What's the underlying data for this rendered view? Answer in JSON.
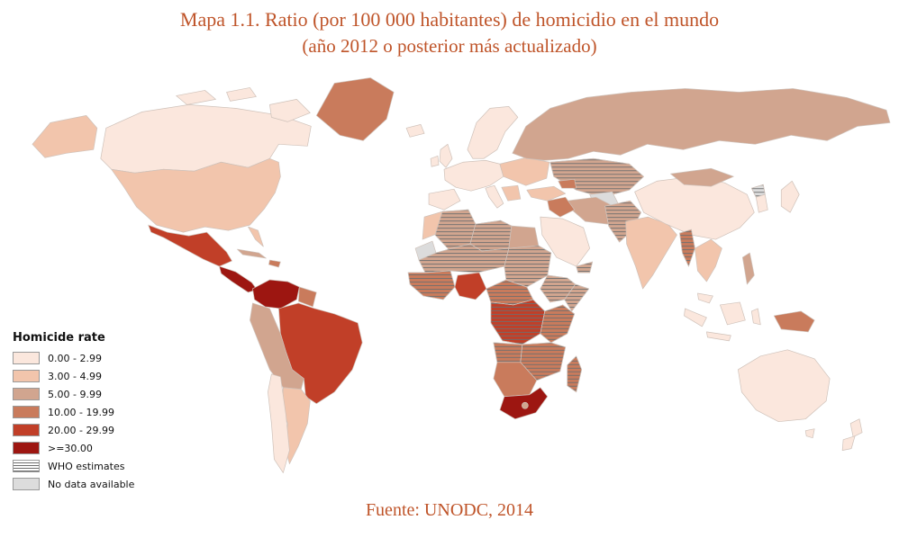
{
  "title": {
    "line1": "Mapa 1.1. Ratio (por 100 000 habitantes) de homicidio en el mundo",
    "line2": "(año 2012 o posterior más actualizado)"
  },
  "source": {
    "text": "Fuente: UNODC, 2014"
  },
  "legend": {
    "title": "Homicide rate",
    "items": [
      {
        "label": "0.00 - 2.99",
        "type": "solid",
        "category": "c1"
      },
      {
        "label": "3.00 - 4.99",
        "type": "solid",
        "category": "c2"
      },
      {
        "label": "5.00 - 9.99",
        "type": "solid",
        "category": "c3"
      },
      {
        "label": "10.00 - 19.99",
        "type": "solid",
        "category": "c4"
      },
      {
        "label": "20.00 - 29.99",
        "type": "solid",
        "category": "c5"
      },
      {
        "label": ">=30.00",
        "type": "solid",
        "category": "c6"
      },
      {
        "label": "WHO estimates",
        "type": "hatch"
      },
      {
        "label": "No data available",
        "type": "solid",
        "category": "nodata"
      }
    ]
  },
  "colors": {
    "c1": "#fbe7dd",
    "c2": "#f2c5ac",
    "c3": "#d1a58f",
    "c4": "#c97b5c",
    "c5": "#c13f28",
    "c6": "#9d1611",
    "nodata": "#dcdcdc",
    "hatch_line": "#6e6e6e",
    "country_border": "#cfc2ba",
    "title_color": "#bf5429",
    "ocean": "#ffffff"
  },
  "map_data": {
    "type": "choropleth",
    "metric": "homicide rate per 100 000 inhabitants (2012 or latest)",
    "regions": [
      {
        "id": "greenland",
        "category": "c4",
        "who": false
      },
      {
        "id": "canada",
        "category": "c1",
        "who": false
      },
      {
        "id": "arctic-islands-1",
        "category": "c1",
        "who": false
      },
      {
        "id": "arctic-islands-2",
        "category": "c1",
        "who": false
      },
      {
        "id": "baffin",
        "category": "c1",
        "who": false
      },
      {
        "id": "alaska",
        "category": "c2",
        "who": false
      },
      {
        "id": "usa",
        "category": "c2",
        "who": false
      },
      {
        "id": "florida",
        "category": "c2",
        "who": false
      },
      {
        "id": "mexico",
        "category": "c5",
        "who": false
      },
      {
        "id": "central-america",
        "category": "c6",
        "who": false
      },
      {
        "id": "cuba",
        "category": "c3",
        "who": false
      },
      {
        "id": "hispaniola",
        "category": "c4",
        "who": false
      },
      {
        "id": "colombia-venezuela",
        "category": "c6",
        "who": false
      },
      {
        "id": "guyanas",
        "category": "c4",
        "who": false
      },
      {
        "id": "brazil",
        "category": "c5",
        "who": false
      },
      {
        "id": "andes",
        "category": "c3",
        "who": false
      },
      {
        "id": "chile",
        "category": "c1",
        "who": false
      },
      {
        "id": "argentina",
        "category": "c2",
        "who": false
      },
      {
        "id": "iceland",
        "category": "c1",
        "who": false
      },
      {
        "id": "ireland",
        "category": "c1",
        "who": false
      },
      {
        "id": "uk",
        "category": "c1",
        "who": false
      },
      {
        "id": "scandinavia",
        "category": "c1",
        "who": false
      },
      {
        "id": "west-europe",
        "category": "c1",
        "who": false
      },
      {
        "id": "iberia",
        "category": "c1",
        "who": false
      },
      {
        "id": "italy",
        "category": "c1",
        "who": false
      },
      {
        "id": "east-europe",
        "category": "c2",
        "who": false
      },
      {
        "id": "balkans",
        "category": "c2",
        "who": false
      },
      {
        "id": "russia",
        "category": "c3",
        "who": false
      },
      {
        "id": "kazakhstan",
        "category": "c3",
        "who": true
      },
      {
        "id": "turkmenistan",
        "category": "nodata",
        "who": false
      },
      {
        "id": "turkey",
        "category": "c2",
        "who": false
      },
      {
        "id": "caucasus",
        "category": "c4",
        "who": false
      },
      {
        "id": "iran",
        "category": "c3",
        "who": false
      },
      {
        "id": "iraq-syria",
        "category": "c4",
        "who": false
      },
      {
        "id": "saudi-arabia",
        "category": "c1",
        "who": false
      },
      {
        "id": "yemen",
        "category": "c3",
        "who": true
      },
      {
        "id": "afghanistan-pakistan",
        "category": "c3",
        "who": true
      },
      {
        "id": "india",
        "category": "c2",
        "who": false
      },
      {
        "id": "china",
        "category": "c1",
        "who": false
      },
      {
        "id": "mongolia",
        "category": "c3",
        "who": false
      },
      {
        "id": "north-korea",
        "category": "nodata",
        "who": true
      },
      {
        "id": "south-korea",
        "category": "c1",
        "who": false
      },
      {
        "id": "japan",
        "category": "c1",
        "who": false
      },
      {
        "id": "myanmar",
        "category": "c4",
        "who": true
      },
      {
        "id": "indochina",
        "category": "c2",
        "who": false
      },
      {
        "id": "malaysia",
        "category": "c1",
        "who": false
      },
      {
        "id": "sumatra",
        "category": "c1",
        "who": false
      },
      {
        "id": "java",
        "category": "c1",
        "who": false
      },
      {
        "id": "borneo",
        "category": "c1",
        "who": false
      },
      {
        "id": "sulawesi",
        "category": "c1",
        "who": false
      },
      {
        "id": "philippines",
        "category": "c3",
        "who": false
      },
      {
        "id": "new-guinea",
        "category": "c4",
        "who": false
      },
      {
        "id": "australia",
        "category": "c1",
        "who": false
      },
      {
        "id": "tasmania",
        "category": "c1",
        "who": false
      },
      {
        "id": "nz-north",
        "category": "c1",
        "who": false
      },
      {
        "id": "nz-south",
        "category": "c1",
        "who": false
      },
      {
        "id": "morocco",
        "category": "c2",
        "who": false
      },
      {
        "id": "western-sahara",
        "category": "nodata",
        "who": false
      },
      {
        "id": "algeria",
        "category": "c3",
        "who": true
      },
      {
        "id": "libya",
        "category": "c3",
        "who": true
      },
      {
        "id": "egypt",
        "category": "c3",
        "who": false
      },
      {
        "id": "sahel",
        "category": "c3",
        "who": true
      },
      {
        "id": "chad-sudan",
        "category": "c3",
        "who": true
      },
      {
        "id": "west-africa",
        "category": "c4",
        "who": true
      },
      {
        "id": "nigeria",
        "category": "c5",
        "who": false
      },
      {
        "id": "ethiopia",
        "category": "c3",
        "who": true
      },
      {
        "id": "somalia",
        "category": "c3",
        "who": true
      },
      {
        "id": "central-africa",
        "category": "c4",
        "who": true
      },
      {
        "id": "dr-congo",
        "category": "c5",
        "who": true
      },
      {
        "id": "east-africa",
        "category": "c4",
        "who": true
      },
      {
        "id": "angola",
        "category": "c4",
        "who": true
      },
      {
        "id": "zambia-mozambique",
        "category": "c4",
        "who": true
      },
      {
        "id": "namibia-botswana",
        "category": "c4",
        "who": false
      },
      {
        "id": "south-africa",
        "category": "c6",
        "who": false
      },
      {
        "id": "lesotho",
        "category": "c3",
        "who": false
      },
      {
        "id": "madagascar",
        "category": "c4",
        "who": true
      }
    ]
  }
}
